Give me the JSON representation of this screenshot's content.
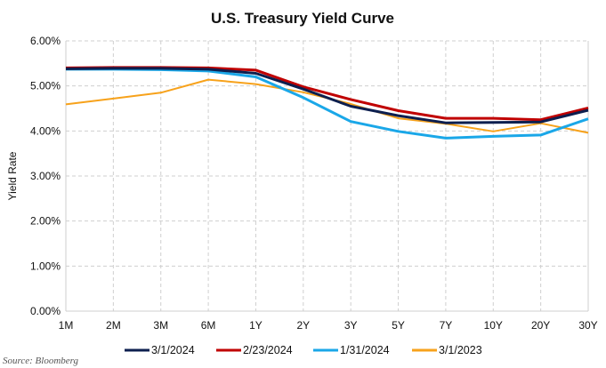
{
  "chart_data": {
    "type": "line",
    "title": "U.S. Treasury Yield Curve",
    "xlabel": "",
    "ylabel": "Yield Rate",
    "categories": [
      "1M",
      "2M",
      "3M",
      "6M",
      "1Y",
      "2Y",
      "3Y",
      "5Y",
      "7Y",
      "10Y",
      "20Y",
      "30Y"
    ],
    "ylim": [
      0,
      6
    ],
    "yticks": [
      0,
      1,
      2,
      3,
      4,
      5,
      6
    ],
    "ytick_labels": [
      "0.00%",
      "1.00%",
      "2.00%",
      "3.00%",
      "4.00%",
      "5.00%",
      "6.00%"
    ],
    "grid": true,
    "legend_position": "bottom",
    "series": [
      {
        "name": "3/1/2024",
        "color": "#0d1f4f",
        "values": [
          5.38,
          5.39,
          5.39,
          5.37,
          5.28,
          4.93,
          4.55,
          4.34,
          4.18,
          4.19,
          4.2,
          4.46
        ]
      },
      {
        "name": "2/23/2024",
        "color": "#c00000",
        "values": [
          5.4,
          5.41,
          5.41,
          5.4,
          5.35,
          4.98,
          4.7,
          4.45,
          4.28,
          4.28,
          4.25,
          4.51
        ]
      },
      {
        "name": "1/31/2024",
        "color": "#1aa7e8",
        "values": [
          5.37,
          5.37,
          5.36,
          5.33,
          5.2,
          4.74,
          4.21,
          3.99,
          3.84,
          3.88,
          3.91,
          4.27
        ]
      },
      {
        "name": "3/1/2023",
        "color": "#f7a21b",
        "values": [
          4.59,
          4.72,
          4.85,
          5.14,
          5.04,
          4.86,
          4.6,
          4.28,
          4.16,
          3.99,
          4.17,
          3.96
        ]
      }
    ]
  },
  "source": "Source: Bloomberg"
}
